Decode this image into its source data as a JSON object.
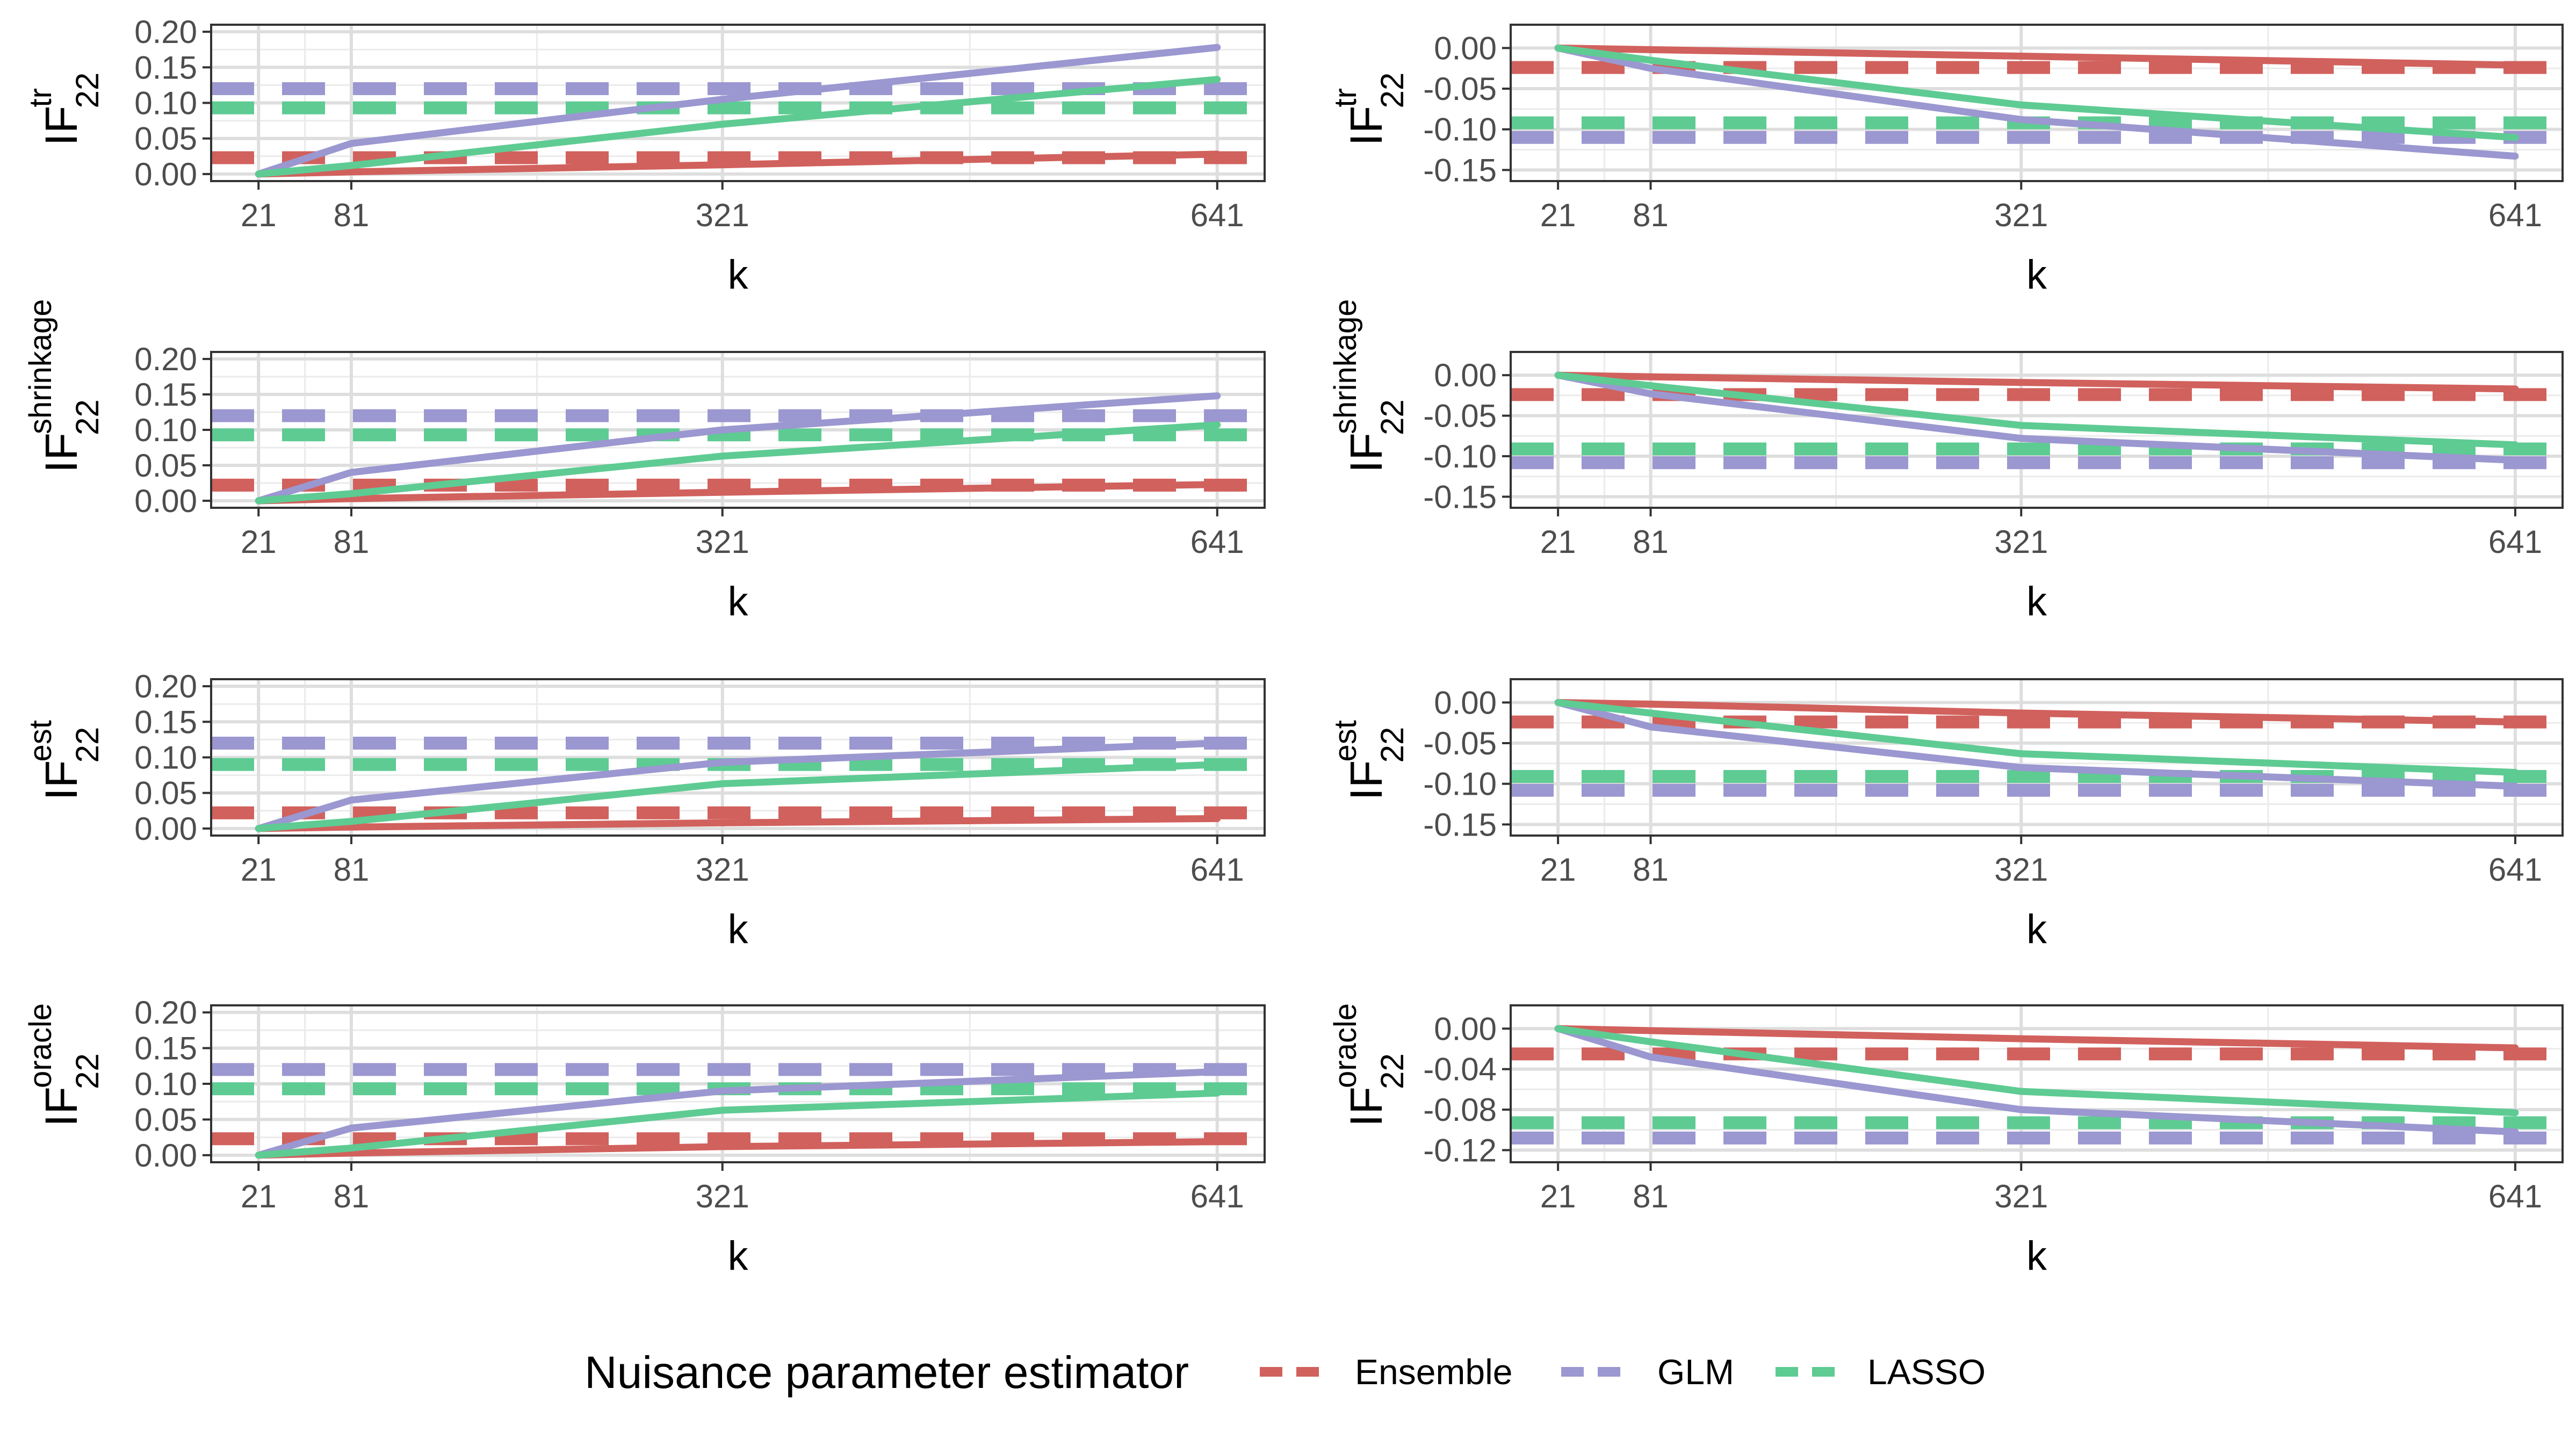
{
  "legend": {
    "title": "Nuisance parameter estimator",
    "items": [
      {
        "name": "Ensemble",
        "color": "#D1615D"
      },
      {
        "name": "GLM",
        "color": "#9B97D0"
      },
      {
        "name": "LASSO",
        "color": "#5ECB93"
      }
    ]
  },
  "chart_data": [
    {
      "type": "line",
      "panel": "row1-left",
      "ylabel": {
        "base": "IF",
        "sub": "22",
        "sup": "tr"
      },
      "xlabel": "k",
      "x": [
        21,
        81,
        321,
        641
      ],
      "xlim": [
        21,
        641
      ],
      "ylim": [
        0,
        0.2
      ],
      "yticks": [
        "0.00",
        "0.05",
        "0.10",
        "0.15",
        "0.20"
      ],
      "ytick_values": [
        0,
        0.05,
        0.1,
        0.15,
        0.2
      ],
      "grid": true,
      "series": [
        {
          "name": "Ensemble",
          "values": [
            0,
            0.003,
            0.013,
            0.028
          ]
        },
        {
          "name": "GLM",
          "values": [
            0,
            0.043,
            0.105,
            0.178
          ]
        },
        {
          "name": "LASSO",
          "values": [
            0,
            0.012,
            0.07,
            0.133
          ]
        }
      ],
      "reference_lines": [
        {
          "name": "Ensemble",
          "value": 0.023
        },
        {
          "name": "GLM",
          "value": 0.12
        },
        {
          "name": "LASSO",
          "value": 0.093
        }
      ]
    },
    {
      "type": "line",
      "panel": "row1-right",
      "ylabel": {
        "base": "IF",
        "sub": "22",
        "sup": "tr"
      },
      "xlabel": "k",
      "x": [
        21,
        81,
        321,
        641
      ],
      "xlim": [
        21,
        641
      ],
      "ylim": [
        -0.155,
        0.02
      ],
      "yticks": [
        "0.00",
        "-0.05",
        "-0.10",
        "-0.15"
      ],
      "ytick_values": [
        0,
        -0.05,
        -0.1,
        -0.15
      ],
      "grid": true,
      "series": [
        {
          "name": "Ensemble",
          "values": [
            0,
            -0.002,
            -0.01,
            -0.021
          ]
        },
        {
          "name": "GLM",
          "values": [
            0,
            -0.025,
            -0.088,
            -0.133
          ]
        },
        {
          "name": "LASSO",
          "values": [
            0,
            -0.015,
            -0.07,
            -0.11
          ]
        }
      ],
      "reference_lines": [
        {
          "name": "Ensemble",
          "value": -0.024
        },
        {
          "name": "GLM",
          "value": -0.11
        },
        {
          "name": "LASSO",
          "value": -0.092
        }
      ]
    },
    {
      "type": "line",
      "panel": "row2-left",
      "ylabel": {
        "base": "IF",
        "sub": "22",
        "sup": "shrinkage"
      },
      "xlabel": "k",
      "x": [
        21,
        81,
        321,
        641
      ],
      "xlim": [
        21,
        641
      ],
      "ylim": [
        0,
        0.2
      ],
      "yticks": [
        "0.00",
        "0.05",
        "0.10",
        "0.15",
        "0.20"
      ],
      "ytick_values": [
        0,
        0.05,
        0.1,
        0.15,
        0.2
      ],
      "grid": true,
      "series": [
        {
          "name": "Ensemble",
          "values": [
            0,
            0.003,
            0.012,
            0.023
          ]
        },
        {
          "name": "GLM",
          "values": [
            0,
            0.04,
            0.1,
            0.148
          ]
        },
        {
          "name": "LASSO",
          "values": [
            0,
            0.01,
            0.063,
            0.107
          ]
        }
      ],
      "reference_lines": [
        {
          "name": "Ensemble",
          "value": 0.022
        },
        {
          "name": "GLM",
          "value": 0.12
        },
        {
          "name": "LASSO",
          "value": 0.093
        }
      ]
    },
    {
      "type": "line",
      "panel": "row2-right",
      "ylabel": {
        "base": "IF",
        "sub": "22",
        "sup": "shrinkage"
      },
      "xlabel": "k",
      "x": [
        21,
        81,
        321,
        641
      ],
      "xlim": [
        21,
        641
      ],
      "ylim": [
        -0.155,
        0.02
      ],
      "yticks": [
        "0.00",
        "-0.05",
        "-0.10",
        "-0.15"
      ],
      "ytick_values": [
        0,
        -0.05,
        -0.1,
        -0.15
      ],
      "grid": true,
      "series": [
        {
          "name": "Ensemble",
          "values": [
            0,
            -0.002,
            -0.009,
            -0.017
          ]
        },
        {
          "name": "GLM",
          "values": [
            0,
            -0.023,
            -0.078,
            -0.105
          ]
        },
        {
          "name": "LASSO",
          "values": [
            0,
            -0.013,
            -0.062,
            -0.086
          ]
        }
      ],
      "reference_lines": [
        {
          "name": "Ensemble",
          "value": -0.024
        },
        {
          "name": "GLM",
          "value": -0.108
        },
        {
          "name": "LASSO",
          "value": -0.091
        }
      ]
    },
    {
      "type": "line",
      "panel": "row3-left",
      "ylabel": {
        "base": "IF",
        "sub": "22",
        "sup": "est"
      },
      "xlabel": "k",
      "x": [
        21,
        81,
        321,
        641
      ],
      "xlim": [
        21,
        641
      ],
      "ylim": [
        0,
        0.2
      ],
      "yticks": [
        "0.00",
        "0.05",
        "0.10",
        "0.15",
        "0.20"
      ],
      "ytick_values": [
        0,
        0.05,
        0.1,
        0.15,
        0.2
      ],
      "grid": true,
      "series": [
        {
          "name": "Ensemble",
          "values": [
            0,
            0.002,
            0.008,
            0.014
          ]
        },
        {
          "name": "GLM",
          "values": [
            0,
            0.04,
            0.093,
            0.12
          ]
        },
        {
          "name": "LASSO",
          "values": [
            0,
            0.01,
            0.063,
            0.09
          ]
        }
      ],
      "reference_lines": [
        {
          "name": "Ensemble",
          "value": 0.022
        },
        {
          "name": "GLM",
          "value": 0.12
        },
        {
          "name": "LASSO",
          "value": 0.09
        }
      ]
    },
    {
      "type": "line",
      "panel": "row3-right",
      "ylabel": {
        "base": "IF",
        "sub": "22",
        "sup": "est"
      },
      "xlabel": "k",
      "x": [
        21,
        81,
        321,
        641
      ],
      "xlim": [
        21,
        641
      ],
      "ylim": [
        -0.155,
        0.02
      ],
      "yticks": [
        "0.00",
        "-0.05",
        "-0.10",
        "-0.15"
      ],
      "ytick_values": [
        0,
        -0.05,
        -0.1,
        -0.15
      ],
      "grid": true,
      "series": [
        {
          "name": "Ensemble",
          "values": [
            0,
            -0.002,
            -0.013,
            -0.024
          ]
        },
        {
          "name": "GLM",
          "values": [
            0,
            -0.03,
            -0.08,
            -0.103
          ]
        },
        {
          "name": "LASSO",
          "values": [
            0,
            -0.013,
            -0.063,
            -0.086
          ]
        }
      ],
      "reference_lines": [
        {
          "name": "Ensemble",
          "value": -0.024
        },
        {
          "name": "GLM",
          "value": -0.108
        },
        {
          "name": "LASSO",
          "value": -0.091
        }
      ]
    },
    {
      "type": "line",
      "panel": "row4-left",
      "ylabel": {
        "base": "IF",
        "sub": "22",
        "sup": "oracle"
      },
      "xlabel": "k",
      "x": [
        21,
        81,
        321,
        641
      ],
      "xlim": [
        21,
        641
      ],
      "ylim": [
        0,
        0.2
      ],
      "yticks": [
        "0.00",
        "0.05",
        "0.10",
        "0.15",
        "0.20"
      ],
      "ytick_values": [
        0,
        0.05,
        0.1,
        0.15,
        0.2
      ],
      "grid": true,
      "series": [
        {
          "name": "Ensemble",
          "values": [
            0,
            0.003,
            0.012,
            0.019
          ]
        },
        {
          "name": "GLM",
          "values": [
            0,
            0.038,
            0.09,
            0.117
          ]
        },
        {
          "name": "LASSO",
          "values": [
            0,
            0.01,
            0.063,
            0.087
          ]
        }
      ],
      "reference_lines": [
        {
          "name": "Ensemble",
          "value": 0.023
        },
        {
          "name": "GLM",
          "value": 0.12
        },
        {
          "name": "LASSO",
          "value": 0.093
        }
      ]
    },
    {
      "type": "line",
      "panel": "row4-right",
      "ylabel": {
        "base": "IF",
        "sub": "22",
        "sup": "oracle"
      },
      "xlabel": "k",
      "x": [
        21,
        81,
        321,
        641
      ],
      "xlim": [
        21,
        641
      ],
      "ylim": [
        -0.125,
        0.016
      ],
      "yticks": [
        "0.00",
        "-0.04",
        "-0.08",
        "-0.12"
      ],
      "ytick_values": [
        0,
        -0.04,
        -0.08,
        -0.12
      ],
      "grid": true,
      "series": [
        {
          "name": "Ensemble",
          "values": [
            0,
            -0.002,
            -0.01,
            -0.019
          ]
        },
        {
          "name": "GLM",
          "values": [
            0,
            -0.028,
            -0.08,
            -0.102
          ]
        },
        {
          "name": "LASSO",
          "values": [
            0,
            -0.013,
            -0.062,
            -0.083
          ]
        }
      ],
      "reference_lines": [
        {
          "name": "Ensemble",
          "value": -0.025
        },
        {
          "name": "GLM",
          "value": -0.108
        },
        {
          "name": "LASSO",
          "value": -0.093
        }
      ]
    }
  ]
}
